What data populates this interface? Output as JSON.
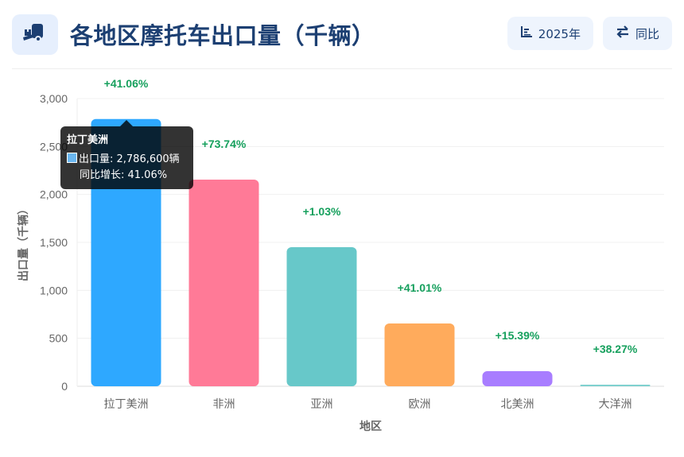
{
  "header": {
    "title": "各地区摩托车出口量（千辆）",
    "logo_icon": "forklift-icon",
    "year_button": {
      "icon": "bar-chart-icon",
      "label": "2025年"
    },
    "yoy_button": {
      "icon": "swap-arrows-icon",
      "label": "同比"
    }
  },
  "tooltip": {
    "title": "拉丁美洲",
    "line1": "出口量: 2,786,600辆",
    "line2": "同比增长: 41.06%"
  },
  "colors": {
    "title": "#1c3f72",
    "growth_label": "#16a05d",
    "bars": [
      "#2ea8ff",
      "#ff7a97",
      "#67c8c9",
      "#ffab5c",
      "#a87dff",
      "#7fd1cf"
    ]
  },
  "chart_data": {
    "type": "bar",
    "title": "各地区摩托车出口量（千辆）",
    "xlabel": "地区",
    "ylabel": "出口量（千辆）",
    "categories": [
      "拉丁美洲",
      "非洲",
      "亚洲",
      "欧洲",
      "北美洲",
      "大洋洲"
    ],
    "values": [
      2786.6,
      2155,
      1450,
      655,
      157,
      15
    ],
    "growth_labels": [
      "+41.06%",
      "+73.74%",
      "+1.03%",
      "+41.01%",
      "+15.39%",
      "+38.27%"
    ],
    "yticks": [
      "0",
      "500",
      "1,000",
      "1,500",
      "2,000",
      "2,500",
      "3,000"
    ],
    "ylim": [
      0,
      3000
    ],
    "grid": true,
    "legend": false
  }
}
